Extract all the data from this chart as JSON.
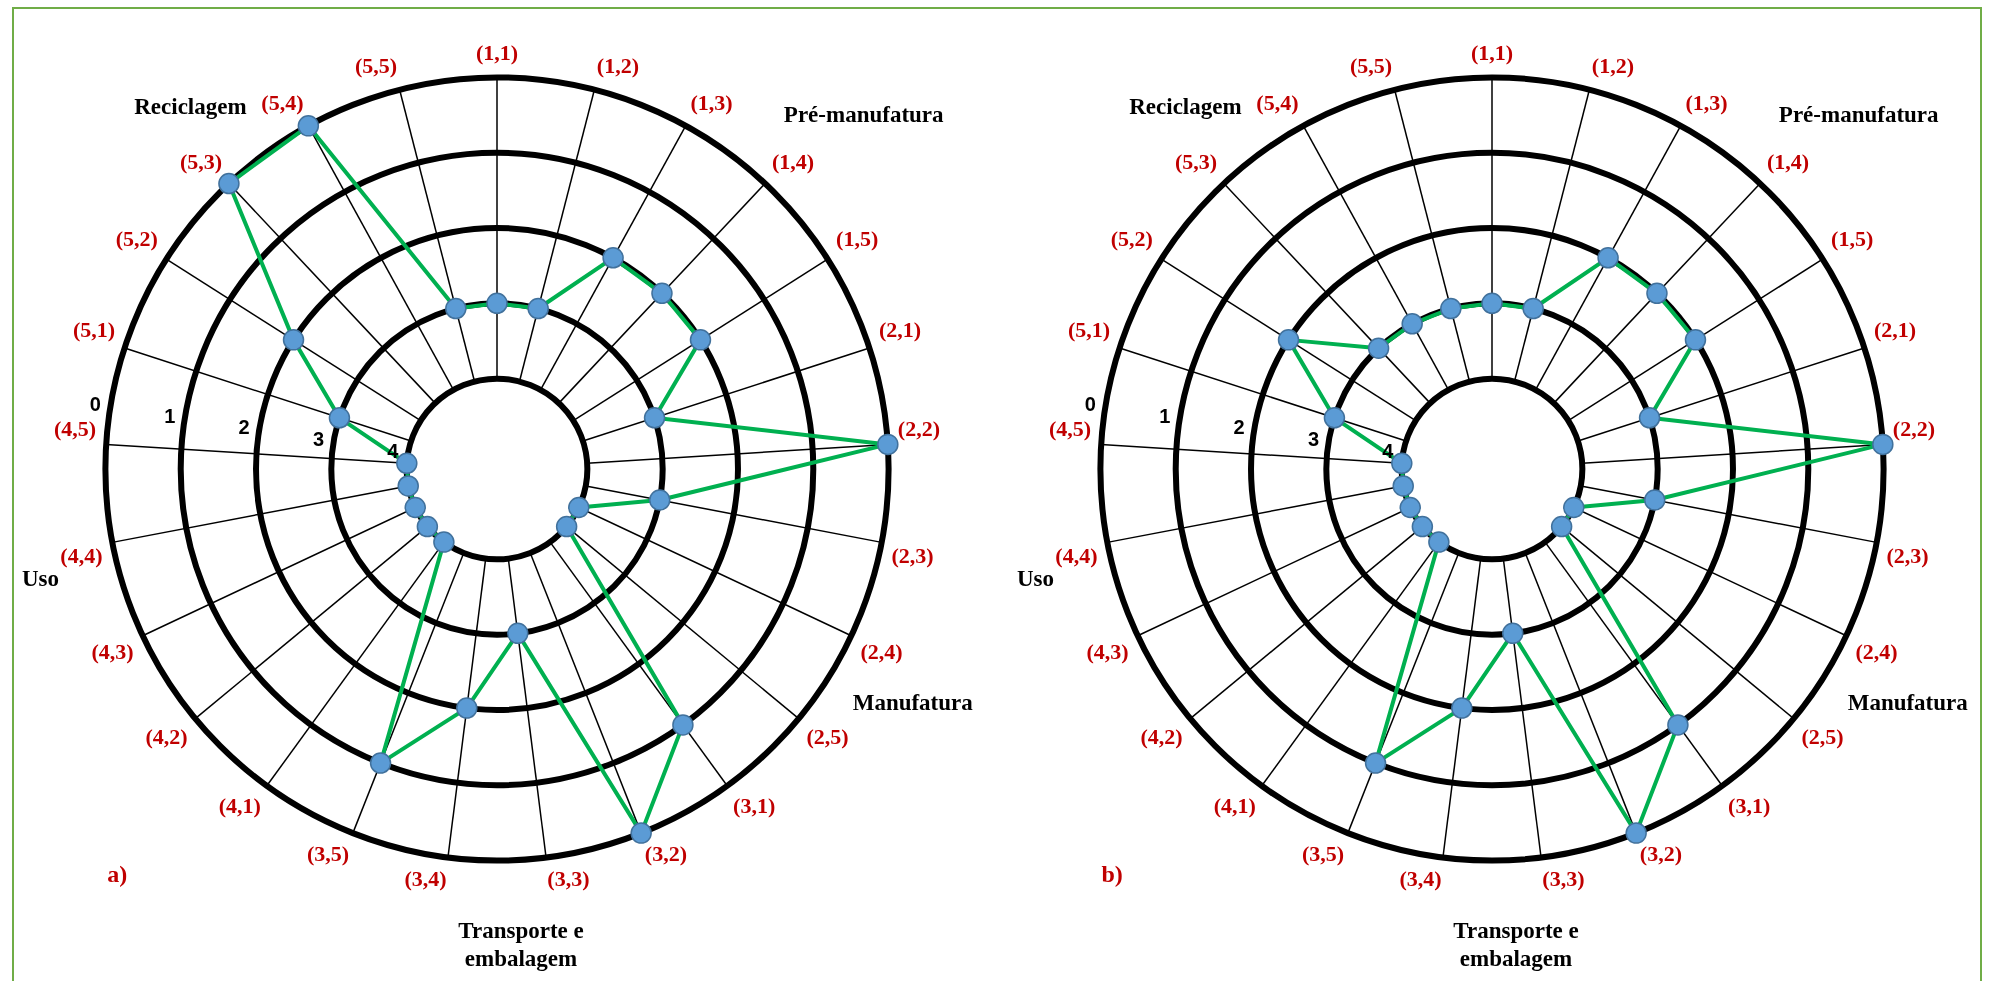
{
  "chart_data": [
    {
      "type": "radar",
      "title": "a)",
      "categories": [
        "(1,1)",
        "(1,2)",
        "(1,3)",
        "(1,4)",
        "(1,5)",
        "(2,1)",
        "(2,2)",
        "(2,3)",
        "(2,4)",
        "(2,5)",
        "(3,1)",
        "(3,2)",
        "(3,3)",
        "(3,4)",
        "(3,5)",
        "(4,1)",
        "(4,2)",
        "(4,3)",
        "(4,4)",
        "(4,5)",
        "(5,1)",
        "(5,2)",
        "(5,3)",
        "(5,4)",
        "(5,5)"
      ],
      "series": [
        {
          "color": "#00b050",
          "values": [
            3,
            3,
            2,
            2,
            2,
            3,
            0,
            3,
            4,
            4,
            1,
            0,
            3,
            2,
            1,
            4,
            4,
            4,
            4,
            4,
            3,
            2,
            0,
            0,
            3
          ]
        }
      ],
      "ylim": [
        5.2,
        0
      ],
      "yticks": [
        0,
        1,
        2,
        3,
        4
      ],
      "grid": true,
      "marker": "circle",
      "annotations": [
        "Pré-manufatura",
        "Manufatura",
        "Transporte e embalagem",
        "Uso",
        "Reciclagem"
      ]
    },
    {
      "type": "radar",
      "title": "b)",
      "categories": [
        "(1,1)",
        "(1,2)",
        "(1,3)",
        "(1,4)",
        "(1,5)",
        "(2,1)",
        "(2,2)",
        "(2,3)",
        "(2,4)",
        "(2,5)",
        "(3,1)",
        "(3,2)",
        "(3,3)",
        "(3,4)",
        "(3,5)",
        "(4,1)",
        "(4,2)",
        "(4,3)",
        "(4,4)",
        "(4,5)",
        "(5,1)",
        "(5,2)",
        "(5,3)",
        "(5,4)",
        "(5,5)"
      ],
      "series": [
        {
          "color": "#00b050",
          "values": [
            3,
            3,
            2,
            2,
            2,
            3,
            0,
            3,
            4,
            4,
            1,
            0,
            3,
            2,
            1,
            4,
            4,
            4,
            4,
            4,
            3,
            2,
            3,
            3,
            3
          ]
        }
      ],
      "ylim": [
        5.2,
        0
      ],
      "yticks": [
        0,
        1,
        2,
        3,
        4
      ],
      "grid": true,
      "marker": "circle",
      "annotations": [
        "Pré-manufatura",
        "Manufatura",
        "Transporte e embalagem",
        "Uso",
        "Reciclagem"
      ]
    }
  ]
}
